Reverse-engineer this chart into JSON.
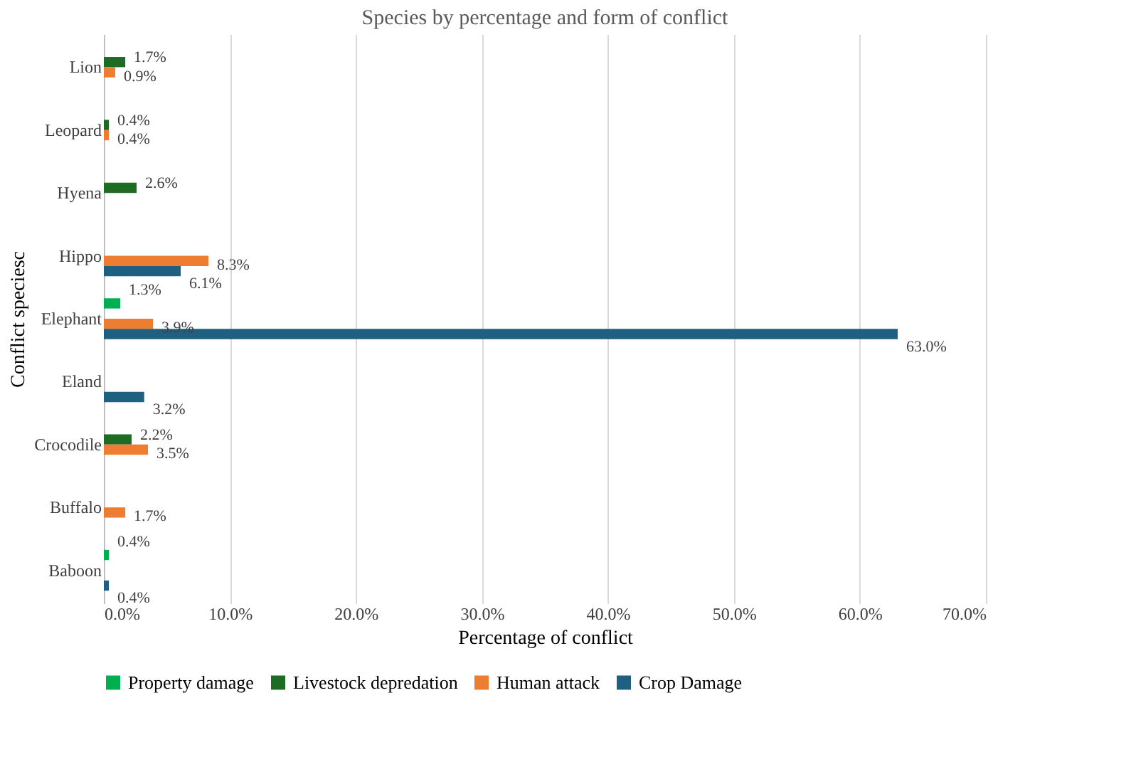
{
  "chart_data": {
    "type": "bar",
    "orientation": "horizontal",
    "title": "Species by percentage and form of conflict",
    "xlabel": "Percentage of conflict",
    "ylabel": "Conflict speciesc",
    "categories": [
      "Lion",
      "Leopard",
      "Hyena",
      "Hippo",
      "Elephant",
      "Eland",
      "Crocodile",
      "Buffalo",
      "Baboon"
    ],
    "series": [
      {
        "name": "Property damage",
        "color": "#00b050",
        "values": [
          null,
          null,
          null,
          null,
          1.3,
          null,
          null,
          null,
          0.4
        ],
        "value_labels": [
          null,
          null,
          null,
          null,
          "1.3%",
          null,
          null,
          null,
          "0.4%"
        ]
      },
      {
        "name": "Livestock depredation",
        "color": "#1e6b24",
        "values": [
          1.7,
          0.4,
          2.6,
          null,
          null,
          null,
          2.2,
          null,
          null
        ],
        "value_labels": [
          "1.7%",
          "0.4%",
          "2.6%",
          null,
          null,
          null,
          "2.2%",
          null,
          null
        ]
      },
      {
        "name": "Human attack",
        "color": "#ed7d31",
        "values": [
          0.9,
          0.4,
          null,
          8.3,
          3.9,
          null,
          3.5,
          1.7,
          null
        ],
        "value_labels": [
          "0.9%",
          "0.4%",
          null,
          "8.3%",
          "3.9%",
          null,
          "3.5%",
          "1.7%",
          null
        ]
      },
      {
        "name": "Crop Damage",
        "color": "#1f5f7f",
        "values": [
          null,
          null,
          null,
          6.1,
          63.0,
          3.2,
          null,
          null,
          0.4
        ],
        "value_labels": [
          null,
          null,
          null,
          "6.1%",
          "63.0%",
          "3.2%",
          null,
          null,
          "0.4%"
        ]
      }
    ],
    "xlim": [
      0,
      70
    ],
    "xticks": [
      {
        "value": 0,
        "label": "0.0%"
      },
      {
        "value": 10,
        "label": "10.0%"
      },
      {
        "value": 20,
        "label": "20.0%"
      },
      {
        "value": 30,
        "label": "30.0%"
      },
      {
        "value": 40,
        "label": "40.0%"
      },
      {
        "value": 50,
        "label": "50.0%"
      },
      {
        "value": 60,
        "label": "60.0%"
      },
      {
        "value": 70,
        "label": "70.0%"
      }
    ],
    "grid": "x",
    "legend": "bottom"
  }
}
